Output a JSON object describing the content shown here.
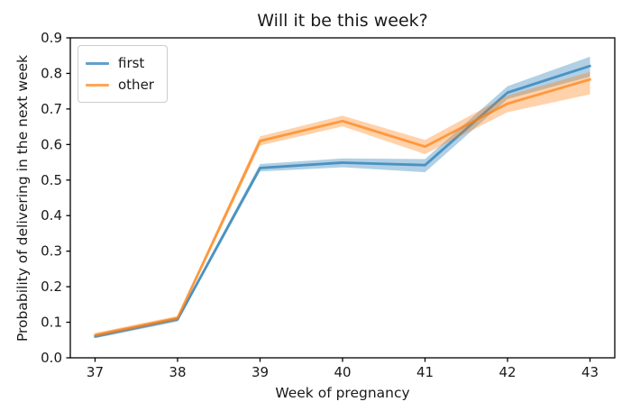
{
  "chart_data": {
    "type": "line",
    "title": "Will it be this week?",
    "xlabel": "Week of pregnancy",
    "ylabel": "Probability of delivering in the next week",
    "x": [
      37,
      38,
      39,
      40,
      41,
      42,
      43
    ],
    "x_tick_labels": [
      "37",
      "38",
      "39",
      "40",
      "41",
      "42",
      "43"
    ],
    "y_ticks": [
      0.0,
      0.1,
      0.2,
      0.3,
      0.4,
      0.5,
      0.6,
      0.7,
      0.8,
      0.9
    ],
    "y_tick_labels": [
      "0.0",
      "0.1",
      "0.2",
      "0.3",
      "0.4",
      "0.5",
      "0.6",
      "0.7",
      "0.8",
      "0.9"
    ],
    "xlim": [
      36.7,
      43.3
    ],
    "ylim": [
      0.0,
      0.9
    ],
    "grid": false,
    "legend": {
      "position": "upper-left",
      "entries": [
        "first",
        "other"
      ]
    },
    "series": [
      {
        "name": "first",
        "color": "#1f77b4",
        "values": [
          0.06,
          0.108,
          0.534,
          0.549,
          0.542,
          0.746,
          0.821
        ],
        "lower": [
          0.055,
          0.102,
          0.524,
          0.536,
          0.522,
          0.728,
          0.791
        ],
        "upper": [
          0.066,
          0.114,
          0.545,
          0.561,
          0.559,
          0.764,
          0.847
        ]
      },
      {
        "name": "other",
        "color": "#ff7f0e",
        "values": [
          0.064,
          0.112,
          0.61,
          0.666,
          0.594,
          0.715,
          0.783
        ],
        "lower": [
          0.058,
          0.106,
          0.597,
          0.651,
          0.573,
          0.691,
          0.741
        ],
        "upper": [
          0.07,
          0.118,
          0.623,
          0.681,
          0.613,
          0.738,
          0.804
        ]
      }
    ]
  }
}
